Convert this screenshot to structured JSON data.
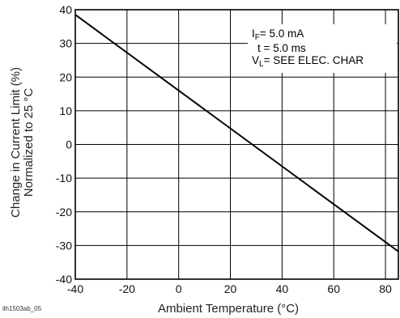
{
  "chart_data": {
    "type": "line",
    "title": "",
    "xlabel": "Ambient Temperature (°C)",
    "ylabel_lines": [
      "Change in Current Limit (%)",
      "Normalized to 25 °C"
    ],
    "xlim": [
      -40,
      85
    ],
    "ylim": [
      -40,
      40
    ],
    "x_ticks": [
      "-40",
      "-20",
      "0",
      "20",
      "40",
      "60",
      "80"
    ],
    "y_ticks": [
      "40",
      "30",
      "20",
      "10",
      "0",
      "-10",
      "-20",
      "-30",
      "-40"
    ],
    "grid": true,
    "series": [
      {
        "x": [
          -40,
          85
        ],
        "y": [
          38.5,
          -31.8
        ]
      }
    ],
    "annotations": {
      "if_main": "I",
      "if_sub": "F",
      "if_rest": "= 5.0 mA",
      "t_line": "t = 5.0 ms",
      "vl_main": "V",
      "vl_sub": "L",
      "vl_rest": "= SEE ELEC. CHAR"
    }
  },
  "figure_code": "ilh1503ab_05",
  "colors": {
    "line": "#000000",
    "grid": "#000000"
  }
}
